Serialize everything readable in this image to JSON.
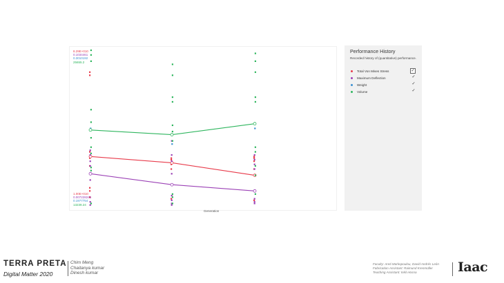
{
  "chart_data": {
    "type": "line",
    "xlabel": "Generation",
    "x": [
      0,
      1,
      2
    ],
    "axis_top_labels": [
      {
        "text": "8.29E+010",
        "color": "#e83a4a"
      },
      {
        "text": "0.1034461",
        "color": "#9a3fb5"
      },
      {
        "text": "0.3010192",
        "color": "#3a8fd0"
      },
      {
        "text": "25655.2",
        "color": "#2db55d"
      }
    ],
    "axis_bottom_labels": [
      {
        "text": "1.00E+010",
        "color": "#e83a4a"
      },
      {
        "text": "0.007228246",
        "color": "#9a3fb5"
      },
      {
        "text": "0.1977754",
        "color": "#3a8fd0"
      },
      {
        "text": "13239.24",
        "color": "#2db55d"
      }
    ],
    "series": [
      {
        "name": "Total Von Mises Stress",
        "color": "#e83a4a",
        "values": [
          0.32,
          0.28,
          0.2
        ],
        "points": [
          [
            0.86,
            0.84,
            0.32,
            0.35,
            0.31,
            0.12,
            0.1,
            0.06,
            0.26
          ],
          [
            0.3,
            0.27,
            0.24,
            0.31,
            0.05
          ],
          [
            0.32,
            0.31,
            0.29,
            0.24,
            0.2,
            0.04
          ]
        ]
      },
      {
        "name": "Maximum Deflection",
        "color": "#9a3fb5",
        "values": [
          0.21,
          0.14,
          0.1
        ],
        "points": [
          [
            0.36,
            0.33,
            0.29,
            0.26,
            0.21,
            0.17,
            0.03,
            0.01
          ],
          [
            0.42,
            0.33,
            0.29,
            0.21,
            0.07,
            0.04,
            0.02,
            0.01
          ],
          [
            0.33,
            0.3,
            0.27,
            0.24,
            0.1,
            0.05,
            0.03,
            0.02
          ]
        ]
      },
      {
        "name": "Weight",
        "color": "#3a8fd0",
        "values": [
          0.52,
          0.49,
          0.53
        ],
        "points": [
          [
            0.5
          ],
          [
            0.4
          ],
          [
            0.5
          ]
        ]
      },
      {
        "name": "Volume",
        "color": "#2db55d",
        "values": [
          0.49,
          0.46,
          0.53
        ],
        "points": [
          [
            1.0,
            0.97,
            0.93,
            0.62,
            0.54,
            0.44,
            0.38,
            0.34,
            0.25,
            0.23,
            0.02
          ],
          [
            0.91,
            0.84,
            0.7,
            0.67,
            0.52,
            0.48,
            0.42,
            0.08,
            0.06,
            0.02
          ],
          [
            0.98,
            0.93,
            0.86,
            0.7,
            0.67,
            0.38,
            0.35,
            0.26,
            0.2,
            0.08
          ]
        ]
      }
    ]
  },
  "history": {
    "title": "Performance History",
    "subtitle": "Recorded history of (quantitative) performance.",
    "items": [
      {
        "label": "Total Von Mises Stress",
        "color": "#e83a4a",
        "check": "✓"
      },
      {
        "label": "Maximum Deflection",
        "color": "#9a3fb5",
        "check": "✓"
      },
      {
        "label": "Weight",
        "color": "#3a8fd0",
        "check": "✓"
      },
      {
        "label": "Volume",
        "color": "#2db55d",
        "check": "✓"
      }
    ]
  },
  "footer": {
    "brand": "TERRA PRETA",
    "subtitle": "Digital Matter 2020",
    "names": [
      "Chim Meng",
      "Chaitanya kumar",
      "Dinesh kumar"
    ],
    "credits": [
      "Faculty: Areti Markopoulou, David Andrés León",
      "Fabrication Assistant: Raimund Krenmüller",
      "Teaching Assistant: Inkil Hosna"
    ],
    "logo": "Iaac"
  }
}
